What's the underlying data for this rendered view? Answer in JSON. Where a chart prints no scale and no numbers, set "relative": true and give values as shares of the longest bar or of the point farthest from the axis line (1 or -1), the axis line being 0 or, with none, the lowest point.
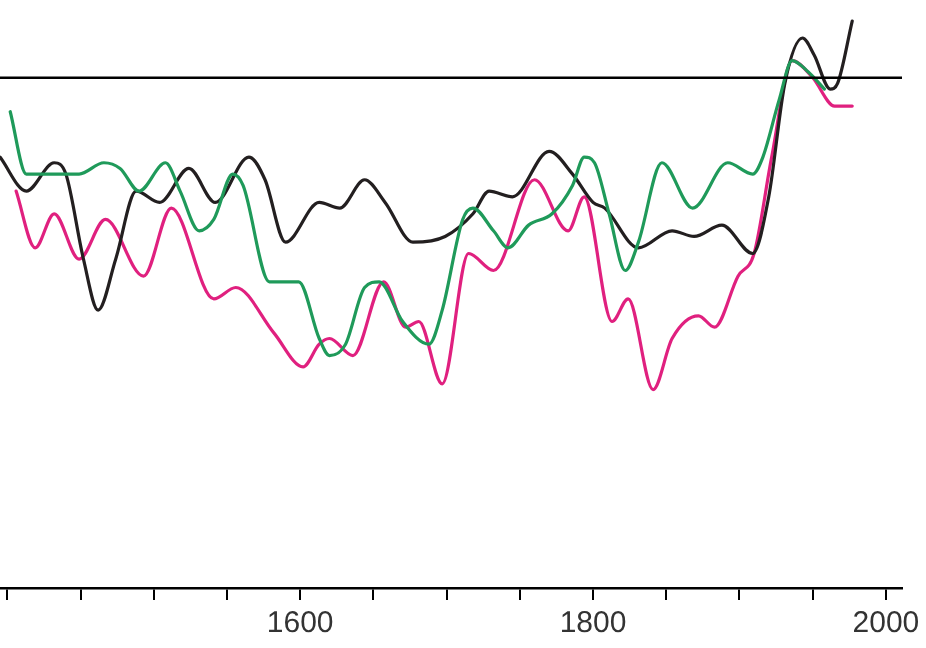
{
  "chart_data": {
    "type": "line",
    "relative": true,
    "xlim": [
      1395,
      2011
    ],
    "xticks": [
      {
        "value": 1400,
        "label": null
      },
      {
        "value": 1450,
        "label": null
      },
      {
        "value": 1500,
        "label": null
      },
      {
        "value": 1550,
        "label": null
      },
      1600,
      {
        "value": 1650,
        "label": null
      },
      {
        "value": 1700,
        "label": null
      },
      {
        "value": 1750,
        "label": null
      },
      1800,
      {
        "value": 1850,
        "label": null
      },
      {
        "value": 1900,
        "label": null
      },
      {
        "value": 1950,
        "label": null
      },
      2000
    ],
    "grid": false,
    "legend": false,
    "marker": "none",
    "line_style": "solid",
    "ref_lines": [
      {
        "axis": "y",
        "value": 0.9,
        "color": "#000000"
      }
    ],
    "series": [
      {
        "color": "#1f9a5a",
        "x": [
          1402,
          1413,
          1429,
          1438,
          1449,
          1466,
          1477,
          1490,
          1508,
          1518,
          1531,
          1541,
          1554,
          1561,
          1579,
          1592,
          1599,
          1613,
          1620,
          1631,
          1644,
          1654,
          1670,
          1688,
          1697,
          1711,
          1718,
          1732,
          1742,
          1756,
          1772,
          1786,
          1794,
          1801,
          1811,
          1822,
          1831,
          1847,
          1868,
          1892,
          1909,
          1916,
          1927,
          1936,
          1947,
          1958
        ],
        "values": [
          0.84,
          0.73,
          0.73,
          0.73,
          0.73,
          0.75,
          0.74,
          0.7,
          0.75,
          0.7,
          0.63,
          0.65,
          0.73,
          0.71,
          0.54,
          0.54,
          0.54,
          0.44,
          0.41,
          0.43,
          0.53,
          0.54,
          0.47,
          0.43,
          0.49,
          0.65,
          0.67,
          0.63,
          0.6,
          0.64,
          0.66,
          0.71,
          0.76,
          0.75,
          0.66,
          0.56,
          0.61,
          0.75,
          0.67,
          0.75,
          0.73,
          0.76,
          0.86,
          0.93,
          0.91,
          0.88
        ]
      },
      {
        "color": "#231f20",
        "x": [
          1395,
          1413,
          1432,
          1440,
          1452,
          1462,
          1474,
          1488,
          1504,
          1524,
          1542,
          1565,
          1576,
          1590,
          1613,
          1627,
          1644,
          1658,
          1677,
          1699,
          1718,
          1729,
          1745,
          1770,
          1786,
          1800,
          1808,
          1831,
          1854,
          1869,
          1888,
          1909,
          1920,
          1931,
          1943,
          1951,
          1962,
          1967,
          1977
        ],
        "values": [
          0.76,
          0.7,
          0.75,
          0.73,
          0.58,
          0.49,
          0.58,
          0.7,
          0.68,
          0.74,
          0.68,
          0.76,
          0.72,
          0.61,
          0.68,
          0.67,
          0.72,
          0.68,
          0.61,
          0.62,
          0.66,
          0.7,
          0.69,
          0.77,
          0.73,
          0.68,
          0.67,
          0.6,
          0.63,
          0.62,
          0.64,
          0.59,
          0.69,
          0.89,
          0.97,
          0.94,
          0.88,
          0.89,
          1.0
        ]
      },
      {
        "color": "#e0207f",
        "x": [
          1406,
          1419,
          1432,
          1449,
          1467,
          1493,
          1512,
          1541,
          1556,
          1582,
          1602,
          1613,
          1620,
          1636,
          1657,
          1672,
          1681,
          1697,
          1715,
          1732,
          1760,
          1783,
          1794,
          1813,
          1824,
          1841,
          1854,
          1872,
          1883,
          1899,
          1910,
          1922,
          1936,
          1950,
          1965,
          1977
        ],
        "values": [
          0.7,
          0.6,
          0.66,
          0.58,
          0.65,
          0.55,
          0.67,
          0.51,
          0.53,
          0.45,
          0.39,
          0.43,
          0.44,
          0.41,
          0.54,
          0.46,
          0.47,
          0.36,
          0.59,
          0.56,
          0.72,
          0.63,
          0.69,
          0.47,
          0.51,
          0.35,
          0.44,
          0.48,
          0.46,
          0.55,
          0.59,
          0.76,
          0.93,
          0.9,
          0.85,
          0.85
        ]
      }
    ]
  }
}
